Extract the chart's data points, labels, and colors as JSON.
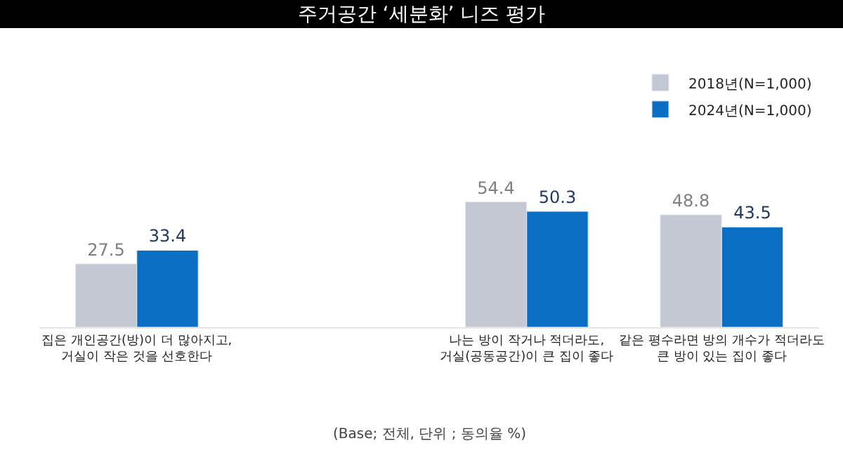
{
  "chart_data": {
    "type": "bar",
    "title": "주거공간 ‘세분화’ 니즈 평가",
    "categories": [
      "집은 개인공간(방)이 더 많아지고,\n거실이 작은 것을 선호한다",
      null,
      "나는 방이 작거나 적더라도,\n거실(공동공간)이 큰 집이 좋다",
      "같은 평수라면 방의 개수가 적더라도\n큰 방이 있는 집이 좋다"
    ],
    "series": [
      {
        "name": "2018년(N=1,000)",
        "color": "#c3c8d2",
        "values": [
          27.5,
          null,
          54.4,
          48.8
        ]
      },
      {
        "name": "2024년(N=1,000)",
        "color": "#0a6fc2",
        "values": [
          33.4,
          null,
          50.3,
          43.5
        ]
      }
    ],
    "ylim": [
      0,
      100
    ],
    "tick_labels": "x",
    "legend": "top right",
    "data_labels": true,
    "annotations": [
      "(Base; 전체, 단위 ; 동의율 %)"
    ]
  }
}
